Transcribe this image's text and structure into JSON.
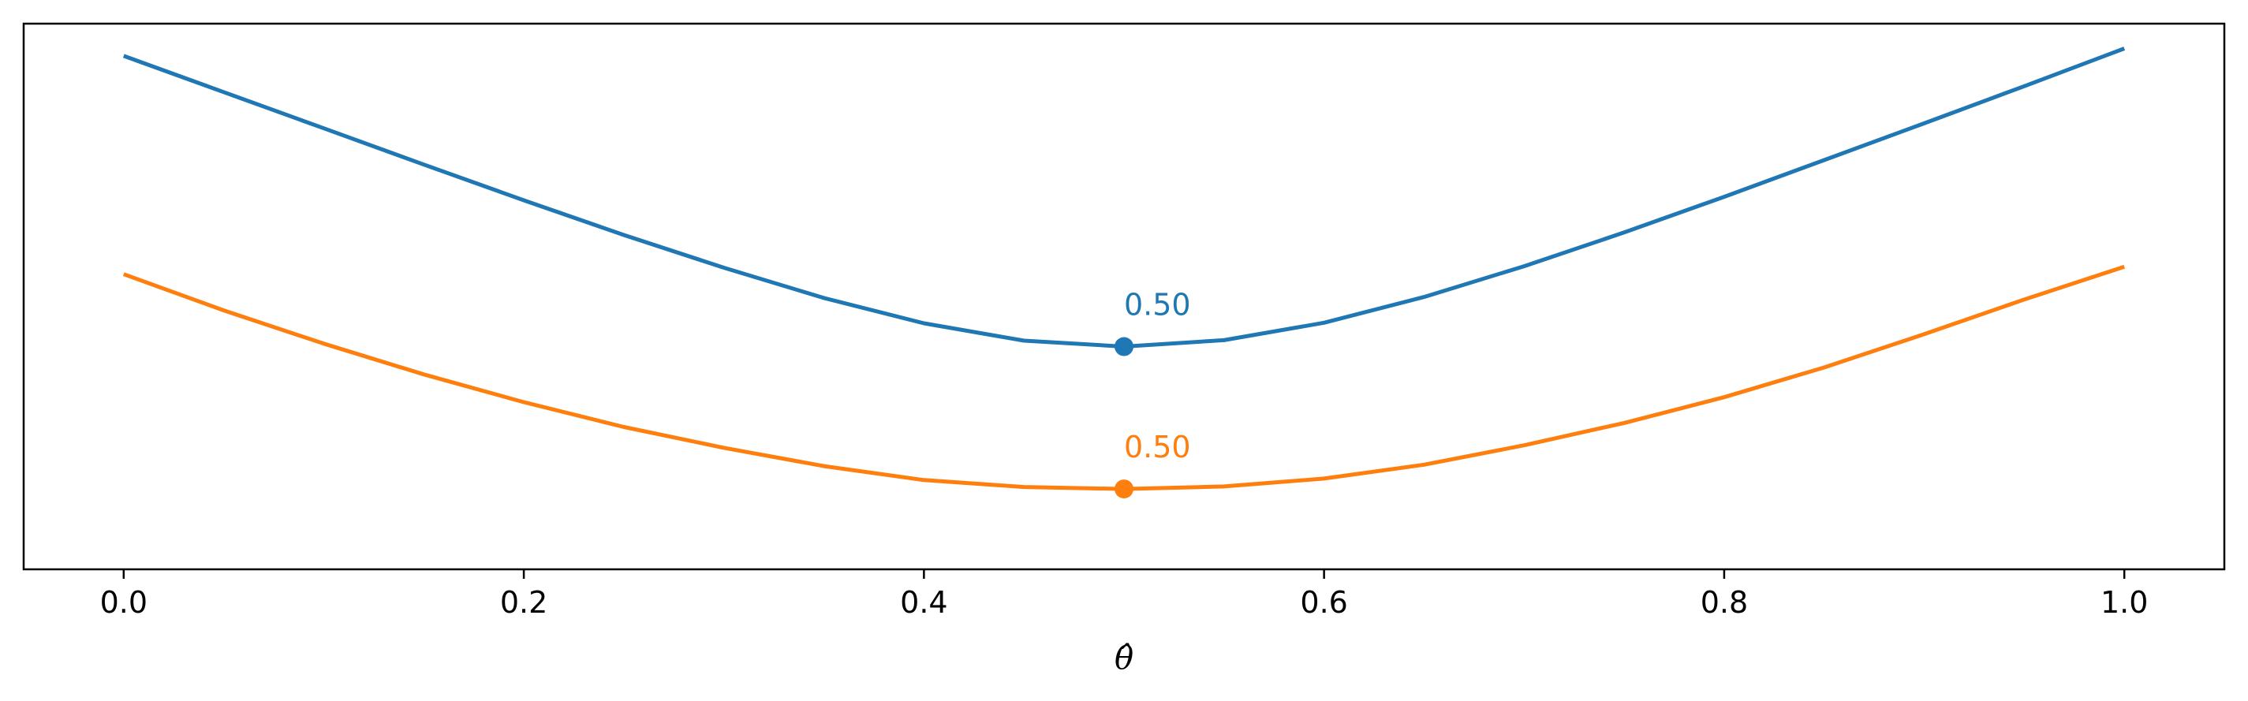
{
  "chart_data": {
    "type": "line",
    "xlabel": "θ̂",
    "xlim": [
      -0.05,
      1.05
    ],
    "ylim": [
      -0.05,
      1.05
    ],
    "xticks": [
      "0.0",
      "0.2",
      "0.4",
      "0.6",
      "0.8",
      "1.0"
    ],
    "xtick_values": [
      0.0,
      0.2,
      0.4,
      0.6,
      0.8,
      1.0
    ],
    "show_yticks": false,
    "grid": false,
    "series": [
      {
        "color": "#1f77b4",
        "x": [
          0.0,
          0.05,
          0.1,
          0.15,
          0.2,
          0.25,
          0.3,
          0.35,
          0.4,
          0.45,
          0.5,
          0.55,
          0.6,
          0.65,
          0.7,
          0.75,
          0.8,
          0.85,
          0.9,
          0.95,
          1.0
        ],
        "y": [
          0.985,
          0.912,
          0.839,
          0.766,
          0.694,
          0.624,
          0.558,
          0.497,
          0.446,
          0.411,
          0.399,
          0.412,
          0.447,
          0.499,
          0.561,
          0.629,
          0.701,
          0.775,
          0.849,
          0.924,
          1.0
        ],
        "minimum": {
          "x": 0.5,
          "y": 0.399,
          "label": "0.50"
        }
      },
      {
        "color": "#ff7f0e",
        "x": [
          0.0,
          0.05,
          0.1,
          0.15,
          0.2,
          0.25,
          0.3,
          0.35,
          0.4,
          0.45,
          0.5,
          0.55,
          0.6,
          0.65,
          0.7,
          0.75,
          0.8,
          0.85,
          0.9,
          0.95,
          1.0
        ],
        "y": [
          0.545,
          0.472,
          0.405,
          0.343,
          0.287,
          0.237,
          0.195,
          0.158,
          0.13,
          0.116,
          0.112,
          0.117,
          0.133,
          0.161,
          0.2,
          0.245,
          0.297,
          0.357,
          0.424,
          0.494,
          0.56
        ],
        "minimum": {
          "x": 0.5,
          "y": 0.112,
          "label": "0.50"
        }
      }
    ]
  }
}
